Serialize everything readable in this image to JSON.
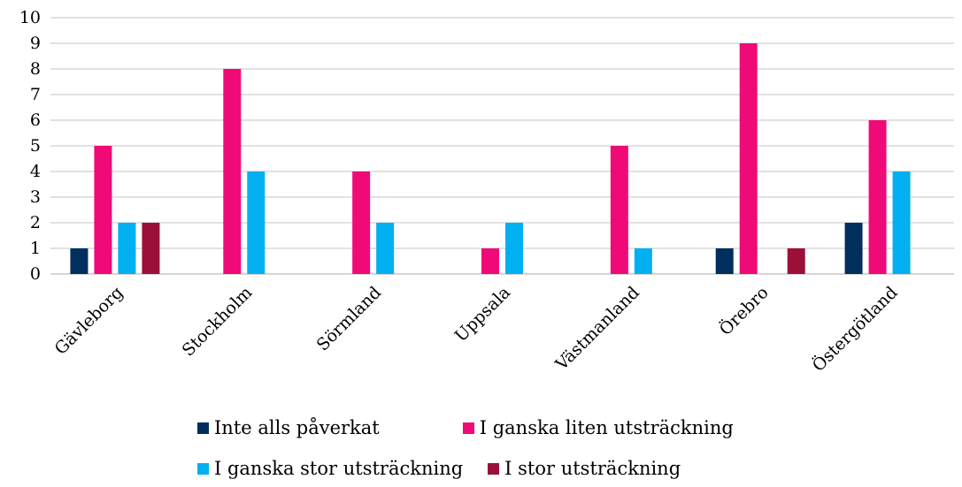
{
  "chart_data": {
    "type": "bar",
    "categories": [
      "Gävleborg",
      "Stockholm",
      "Sörmland",
      "Uppsala",
      "Västmanland",
      "Örebro",
      "Östergötland"
    ],
    "series": [
      {
        "name": "Inte alls påverkat",
        "color": "#002e5d",
        "values": [
          1,
          0,
          0,
          0,
          0,
          1,
          2
        ]
      },
      {
        "name": "I ganska liten utsträckning",
        "color": "#f00a77",
        "values": [
          5,
          8,
          4,
          1,
          5,
          9,
          6
        ]
      },
      {
        "name": "I ganska stor utsträckning",
        "color": "#00b0f0",
        "values": [
          2,
          4,
          2,
          2,
          1,
          0,
          4
        ]
      },
      {
        "name": "I stor utsträckning",
        "color": "#9b1039",
        "values": [
          2,
          0,
          0,
          0,
          0,
          1,
          0
        ]
      }
    ],
    "ylim": [
      0,
      10
    ],
    "yticks": [
      "0",
      "1",
      "2",
      "3",
      "4",
      "5",
      "6",
      "7",
      "8",
      "9",
      "10"
    ],
    "grid": true,
    "legend_position": "bottom"
  }
}
